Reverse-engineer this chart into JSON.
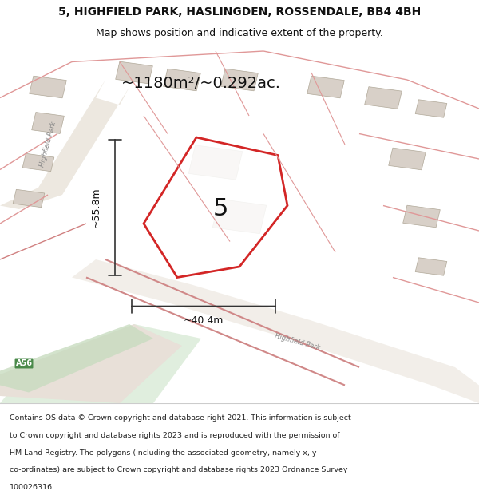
{
  "title_line1": "5, HIGHFIELD PARK, HASLINGDEN, ROSSENDALE, BB4 4BH",
  "title_line2": "Map shows position and indicative extent of the property.",
  "area_text": "~1180m²/~0.292ac.",
  "width_label": "~40.4m",
  "height_label": "~55.8m",
  "number_label": "5",
  "footer_text": "Contains OS data © Crown copyright and database right 2021. This information is subject to Crown copyright and database rights 2023 and is reproduced with the permission of HM Land Registry. The polygons (including the associated geometry, namely x, y co-ordinates) are subject to Crown copyright and database rights 2023 Ordnance Survey 100026316.",
  "bg_color": "#f5f0eb",
  "map_bg": "#f0ece6",
  "road_color_light": "#f2c4c4",
  "road_color_medium": "#e8a0a0",
  "building_color": "#d8d0c8",
  "building_edge": "#b0a898",
  "plot_color": "#ffffff",
  "plot_edge": "#cc0000",
  "green_area": "#d4e8d0",
  "road_line": "#c8a0a0",
  "dim_line_color": "#333333",
  "text_color": "#111111",
  "road_label_color": "#888888"
}
